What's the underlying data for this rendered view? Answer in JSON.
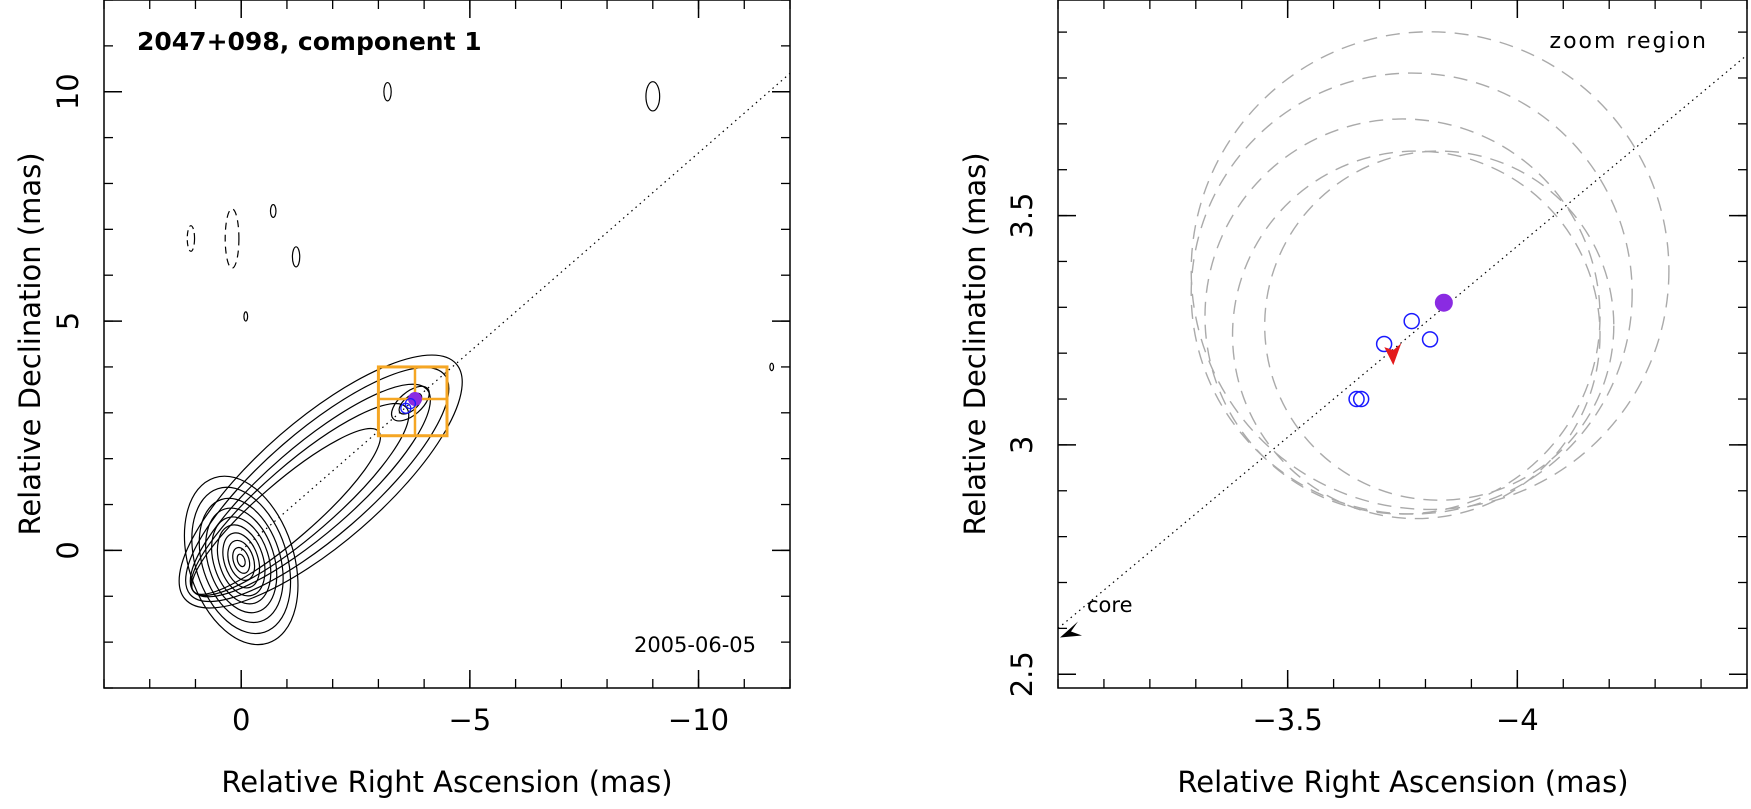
{
  "chart_data": [
    {
      "type": "scatter",
      "title": "2047+098, component 1",
      "date": "2005-06-05",
      "xlabel": "Relative Right Ascension (mas)",
      "ylabel": "Relative Declination (mas)",
      "xlim": [
        3,
        -12
      ],
      "ylim": [
        -3,
        12
      ],
      "x_ticks": [
        0,
        -5,
        -10
      ],
      "y_ticks": [
        0,
        5,
        10
      ],
      "jet_axis": {
        "from": [
          0,
          0
        ],
        "to": [
          -12,
          10.4
        ]
      },
      "zoom_box": {
        "x": [
          -3,
          -4.5
        ],
        "y": [
          2.5,
          4
        ]
      },
      "zoom_box_cross": {
        "x": -3.8,
        "y": 3.3
      },
      "components": [
        {
          "x": -3.8,
          "y": 3.3,
          "marker": "filled",
          "color": "#8a2be2"
        },
        {
          "x": -3.6,
          "y": 3.1,
          "marker": "open",
          "color": "#1a1aff"
        },
        {
          "x": -3.7,
          "y": 3.2,
          "marker": "open",
          "color": "#1a1aff"
        }
      ],
      "contour_color": "#000000",
      "box_color": "#f5a623"
    },
    {
      "type": "scatter",
      "title": "zoom region",
      "core_label": "core",
      "xlabel": "Relative Right Ascension (mas)",
      "ylabel": "Relative Declination (mas)",
      "xlim": [
        -3,
        -4.5
      ],
      "ylim": [
        2.47,
        3.97
      ],
      "x_ticks": [
        -3.5,
        -4
      ],
      "y_ticks": [
        2.5,
        3,
        3.5
      ],
      "jet_axis": {
        "from": [
          -3,
          2.6
        ],
        "to": [
          -4.5,
          3.85
        ]
      },
      "core_arrow": {
        "x": -3.0,
        "y": 2.58
      },
      "components": [
        {
          "x": -3.65,
          "y": 3.1,
          "marker": "open",
          "color": "#1a1aff"
        },
        {
          "x": -3.66,
          "y": 3.1,
          "marker": "open",
          "color": "#1a1aff"
        },
        {
          "x": -3.71,
          "y": 3.22,
          "marker": "open",
          "color": "#1a1aff"
        },
        {
          "x": -3.77,
          "y": 3.27,
          "marker": "open",
          "color": "#1a1aff"
        },
        {
          "x": -3.81,
          "y": 3.23,
          "marker": "open",
          "color": "#1a1aff"
        },
        {
          "x": -3.84,
          "y": 3.31,
          "marker": "filled",
          "color": "#8a2be2"
        }
      ],
      "velocity_arrow": {
        "x": -3.73,
        "y": 3.2,
        "color": "#e31a1c"
      },
      "uncertainty_circles": [
        {
          "cx": -3.81,
          "cy": 3.38,
          "r": 0.52
        },
        {
          "cx": -3.77,
          "cy": 3.33,
          "r": 0.48
        },
        {
          "cx": -3.75,
          "cy": 3.28,
          "r": 0.43
        },
        {
          "cx": -3.78,
          "cy": 3.24,
          "r": 0.4
        },
        {
          "cx": -3.83,
          "cy": 3.26,
          "r": 0.38
        }
      ],
      "circle_color": "#aaaaaa"
    }
  ]
}
